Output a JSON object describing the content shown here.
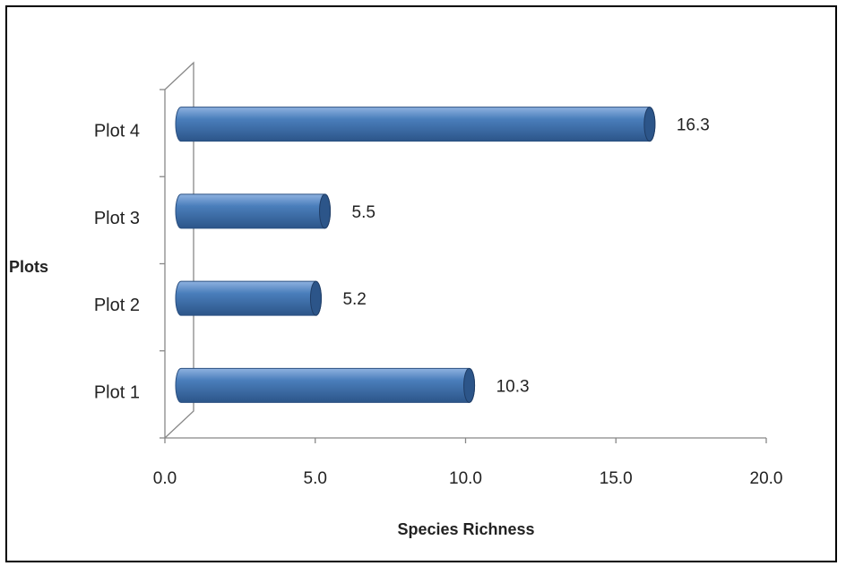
{
  "chart_data": {
    "type": "bar",
    "orientation": "horizontal",
    "categories": [
      "Plot 1",
      "Plot 2",
      "Plot 3",
      "Plot 4"
    ],
    "values": [
      10.3,
      5.2,
      5.5,
      16.3
    ],
    "data_labels": [
      "10.3",
      "5.2",
      "5.5",
      "16.3"
    ],
    "x_ticks": [
      "0.0",
      "5.0",
      "10.0",
      "15.0",
      "20.0"
    ],
    "xlabel": "Species Richness",
    "ylabel": "Plots",
    "xlim": [
      0,
      20
    ],
    "grid": false,
    "legend": "none",
    "bar_color": "#4a7ebb",
    "bar_color_dark": "#2c5589"
  }
}
